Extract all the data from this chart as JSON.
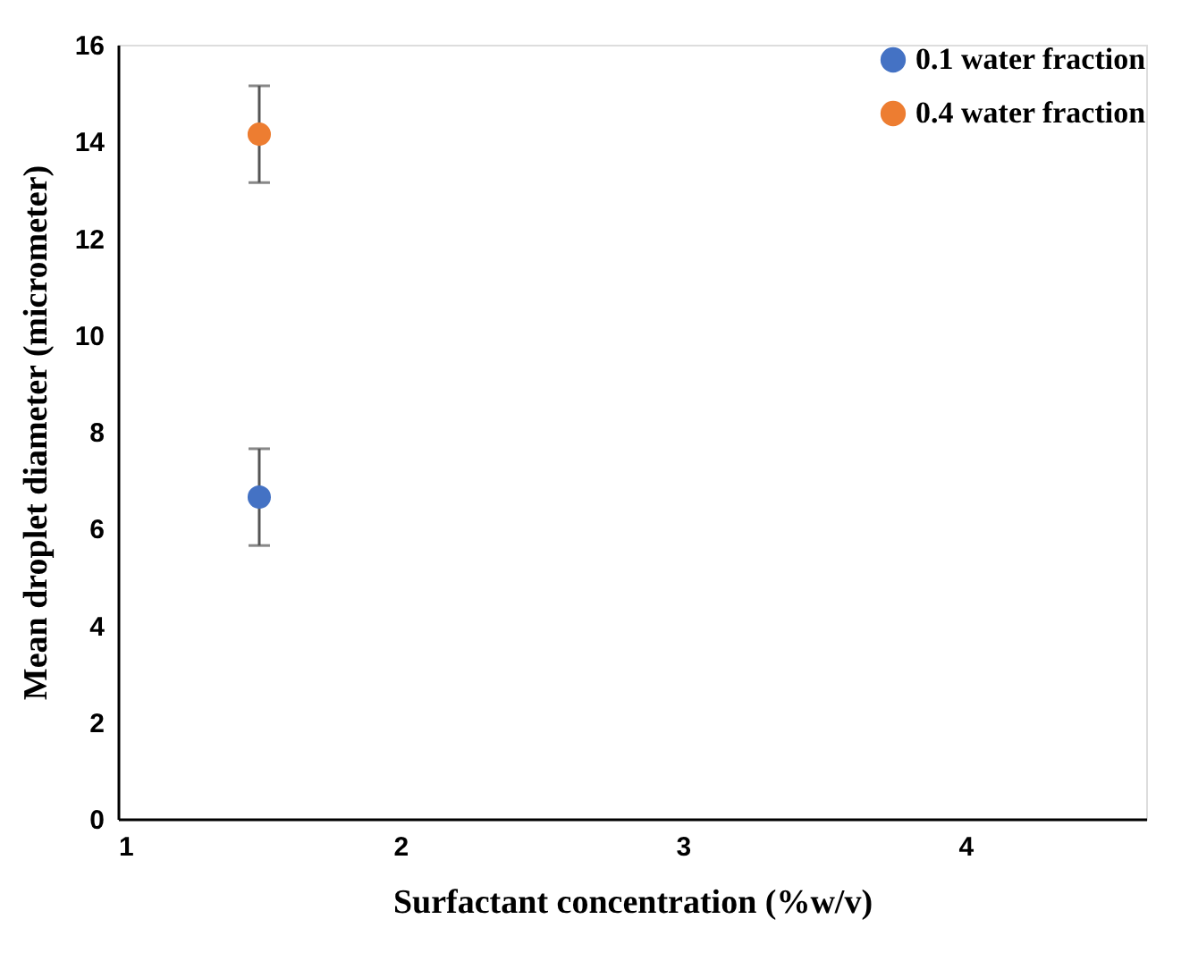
{
  "chart_data": {
    "type": "scatter",
    "xlabel": "Surfactant concentration (%w/v)",
    "ylabel": "Mean droplet diameter (micrometer)",
    "xlim": [
      1,
      4.64
    ],
    "xticks": [
      1,
      2,
      3,
      4
    ],
    "ylim": [
      0,
      16
    ],
    "yticks": [
      0,
      2,
      4,
      6,
      8,
      10,
      12,
      14,
      16
    ],
    "grid": false,
    "legend": "top right",
    "marker": "circle",
    "series": [
      {
        "name": "0.1 water fraction",
        "color": "#4472c4",
        "x": [
          1.5
        ],
        "values": [
          6.65
        ],
        "errors": [
          1
        ]
      },
      {
        "name": "0.4 water fraction",
        "color": "#ed7d31",
        "x": [
          1.5
        ],
        "values": [
          14.15
        ],
        "errors": [
          1
        ]
      }
    ]
  }
}
